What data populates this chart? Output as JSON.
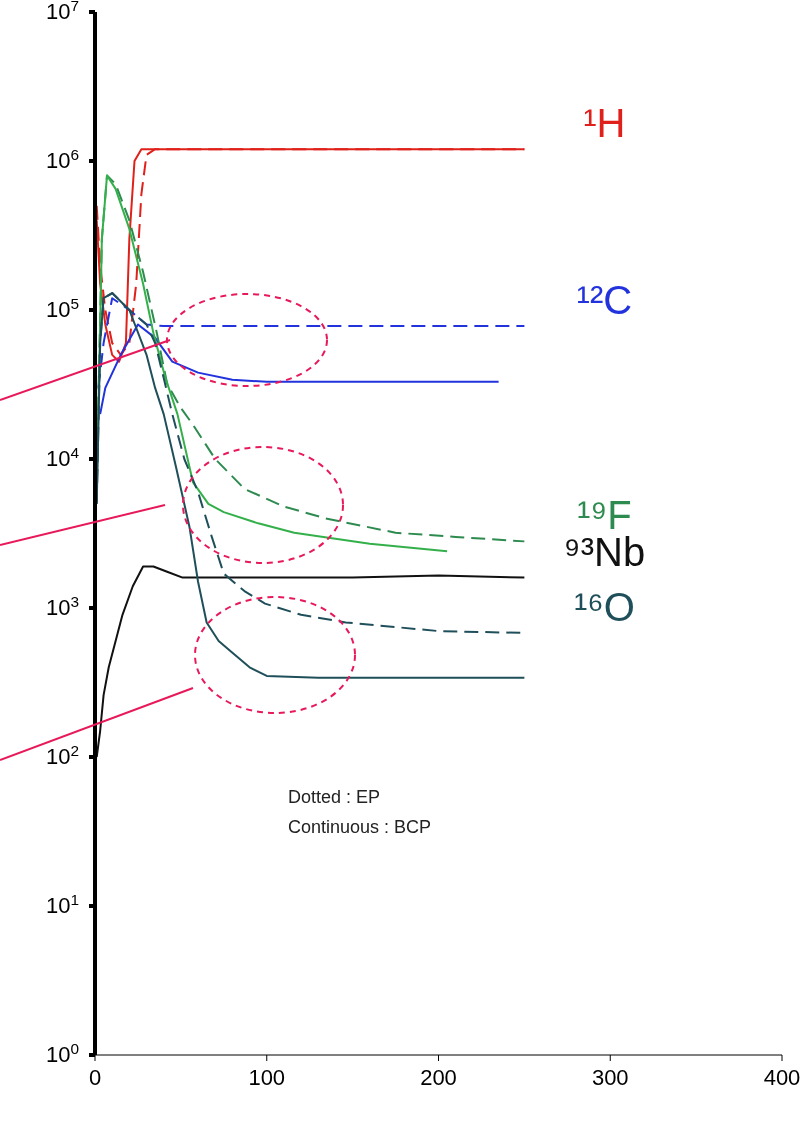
{
  "chart_data": {
    "type": "line",
    "log": "y",
    "xlim": [
      0,
      400
    ],
    "xticks": [
      0,
      100,
      200,
      300,
      400
    ],
    "ylim": [
      1,
      10000000
    ],
    "yticks": [
      {
        "value": 1,
        "label": "10$^{0}$"
      },
      {
        "value": 10,
        "label": "10$^{1}$"
      },
      {
        "value": 100,
        "label": "10$^{2}$"
      },
      {
        "value": 1000,
        "label": "10$^{3}$"
      },
      {
        "value": 10000,
        "label": "10$^{4}$"
      },
      {
        "value": 100000,
        "label": "10$^{5}$"
      },
      {
        "value": 1000000,
        "label": "10$^{6}$"
      },
      {
        "value": 10000000,
        "label": "10$^{7}$"
      }
    ],
    "marker": "none",
    "annotations": [
      "Dotted : EP",
      "Continuous : BCP"
    ],
    "series": [
      {
        "name": "¹H",
        "color": "#e0201a",
        "line_style": "dashed",
        "x": [
          1,
          3,
          6,
          10,
          15,
          20,
          24,
          27,
          30,
          35,
          250
        ],
        "values": [
          500000,
          200000,
          100000,
          60000,
          50000,
          60000,
          150000,
          600000,
          1100000,
          1200000,
          1200000
        ]
      },
      {
        "color": "#e0201a",
        "line_style": "solid",
        "x": [
          1,
          3,
          6,
          10,
          14,
          18,
          20,
          23,
          27,
          250
        ],
        "values": [
          400000,
          150000,
          80000,
          50000,
          45000,
          60000,
          300000,
          1000000,
          1200000,
          1200000
        ]
      },
      {
        "name": "¹²C",
        "color": "#2233dd",
        "line_style": "dashed",
        "x": [
          2,
          5,
          10,
          20,
          30,
          40,
          250
        ],
        "values": [
          30000,
          60000,
          120000,
          100000,
          80000,
          78000,
          78000
        ]
      },
      {
        "color": "#2233dd",
        "line_style": "solid",
        "x": [
          3,
          6,
          15,
          25,
          35,
          45,
          60,
          80,
          100,
          235
        ],
        "values": [
          20000,
          30000,
          50000,
          80000,
          65000,
          45000,
          38000,
          34000,
          33000,
          33000
        ]
      },
      {
        "name": "¹⁹F",
        "color": "#2e8b50",
        "line_style": "dashed",
        "x": [
          1,
          4,
          7,
          12,
          20,
          28,
          36,
          42,
          50,
          57,
          70,
          87,
          110,
          134,
          175,
          210,
          250
        ],
        "values": [
          8000,
          300000,
          800000,
          700000,
          400000,
          180000,
          70000,
          32000,
          22000,
          17000,
          10000,
          6300,
          4800,
          4000,
          3200,
          3000,
          2800
        ]
      },
      {
        "color": "#33b04a",
        "line_style": "solid",
        "x": [
          1,
          4,
          7,
          12,
          20,
          28,
          34,
          41,
          48,
          57,
          66,
          75,
          95,
          116,
          160,
          205
        ],
        "values": [
          6000,
          300000,
          800000,
          650000,
          350000,
          150000,
          70000,
          35000,
          20000,
          7000,
          5000,
          4400,
          3700,
          3200,
          2700,
          2400
        ]
      },
      {
        "name": "⁹³Nb",
        "color": "#111111",
        "line_style": "solid",
        "x": [
          1,
          3,
          5,
          8,
          12,
          16,
          22,
          28,
          34,
          42,
          51,
          100,
          150,
          200,
          250
        ],
        "values": [
          100,
          150,
          260,
          400,
          600,
          900,
          1400,
          1900,
          1900,
          1750,
          1600,
          1600,
          1600,
          1650,
          1600
        ]
      },
      {
        "name": "¹⁶O",
        "color": "#1f4f5a",
        "line_style": "dashed",
        "x": [
          1,
          3,
          5,
          10,
          20,
          30,
          35,
          40,
          45,
          52,
          60,
          68,
          75,
          87,
          99,
          120,
          146,
          200,
          250
        ],
        "values": [
          5000,
          60000,
          120000,
          130000,
          100000,
          80000,
          60000,
          35000,
          20000,
          10000,
          6000,
          3000,
          1700,
          1300,
          1070,
          900,
          800,
          700,
          680
        ]
      },
      {
        "color": "#1f4f5a",
        "line_style": "solid",
        "x": [
          1,
          3,
          5,
          10,
          20,
          30,
          35,
          40,
          47,
          55,
          60,
          65,
          72,
          80,
          90,
          100,
          130,
          180,
          250
        ],
        "values": [
          5000,
          60000,
          120000,
          130000,
          100000,
          50000,
          30000,
          20000,
          9000,
          3500,
          1500,
          800,
          600,
          500,
          400,
          350,
          340,
          340,
          340
        ]
      }
    ]
  }
}
